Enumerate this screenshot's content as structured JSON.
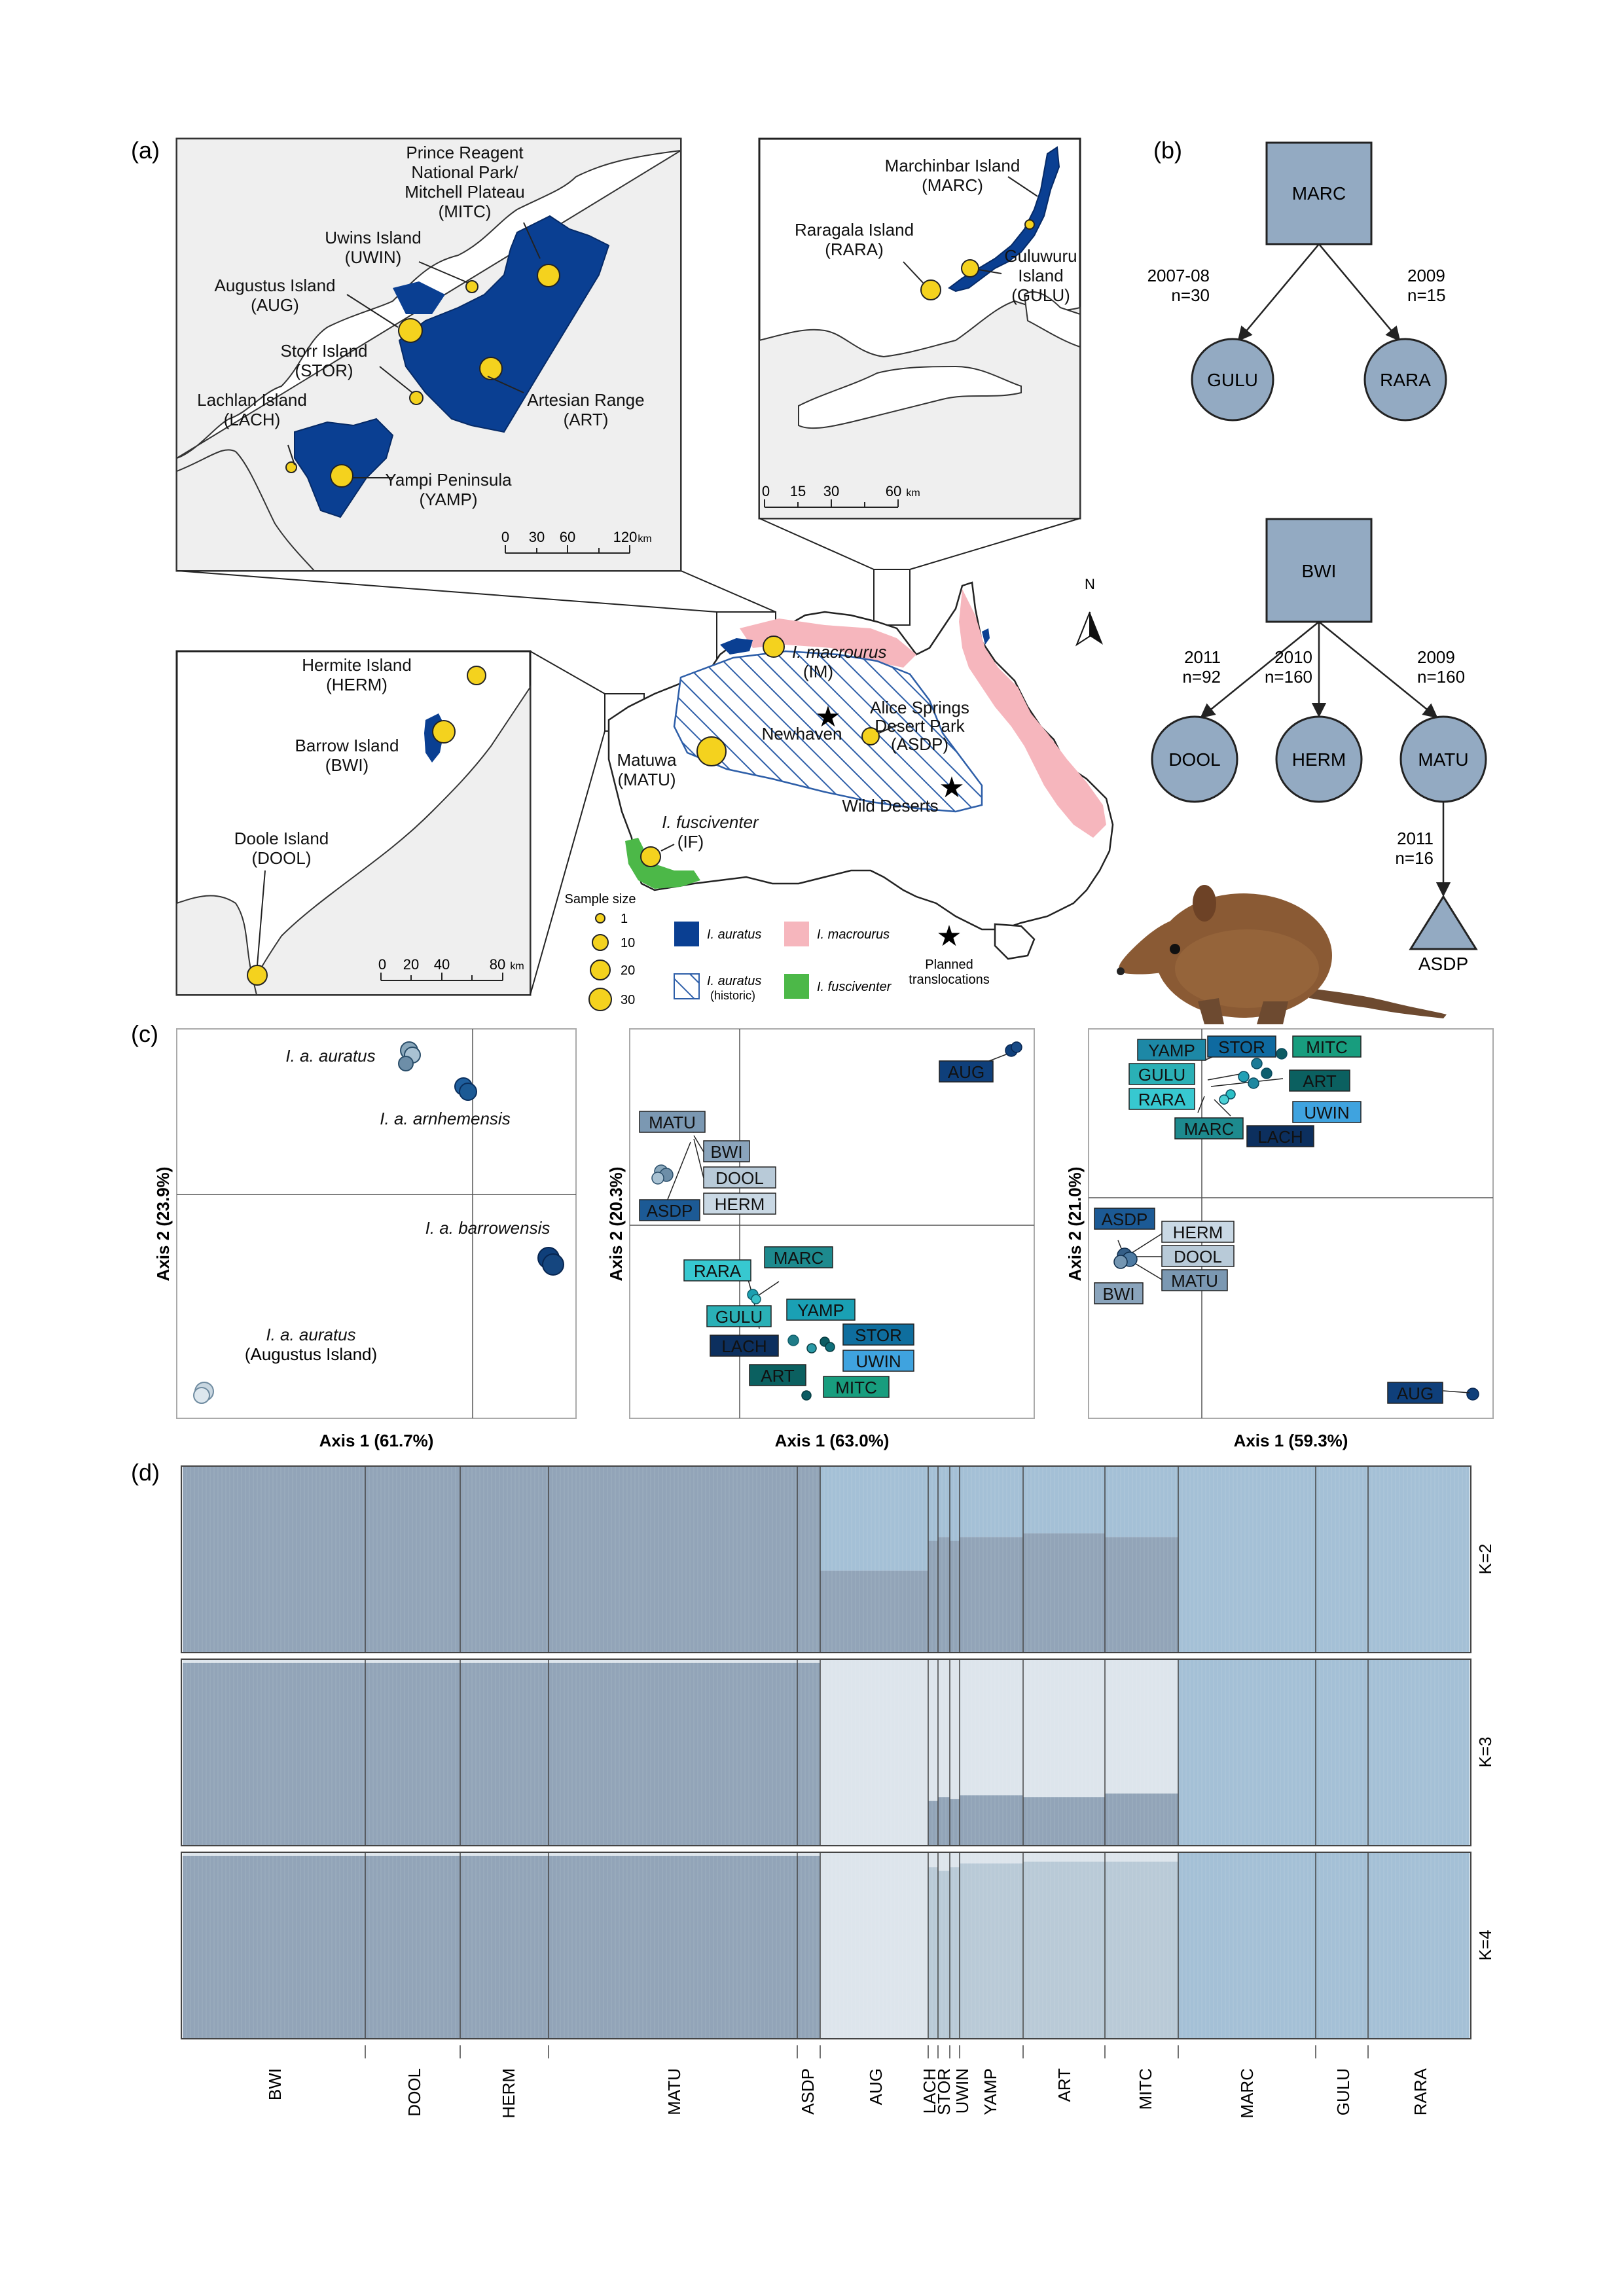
{
  "panel_labels": {
    "a": "(a)",
    "b": "(b)",
    "c": "(c)",
    "d": "(d)"
  },
  "colors": {
    "auratus": "#0a3f92",
    "macrourus": "#f6b6bd",
    "fusciventer": "#4cb848",
    "marker": "#f4d21e",
    "land": "#efefef",
    "tree_node": "#93aac2",
    "structure_c1": "#92a4b8",
    "structure_c2": "#a4c0d6",
    "structure_c3": "#dde5ec",
    "structure_c4": "#b9cad7"
  },
  "map": {
    "kimberley": {
      "labels": {
        "mitc": [
          "Prince Reagent",
          "National Park/",
          "Mitchell Plateau",
          "(MITC)"
        ],
        "uwin": [
          "Uwins Island",
          "(UWIN)"
        ],
        "aug": [
          "Augustus Island",
          "(AUG)"
        ],
        "stor": [
          "Storr Island",
          "(STOR)"
        ],
        "lach": [
          "Lachlan Island",
          "(LACH)"
        ],
        "art": [
          "Artesian Range",
          "(ART)"
        ],
        "yamp": [
          "Yampi Peninsula",
          "(YAMP)"
        ]
      },
      "scale": {
        "ticks": [
          "0",
          "30",
          "60",
          "120"
        ],
        "unit": "km"
      }
    },
    "arnhem": {
      "labels": {
        "marc": [
          "Marchinbar Island",
          "(MARC)"
        ],
        "rara": [
          "Raragala Island",
          "(RARA)"
        ],
        "gulu": [
          "Guluwuru",
          "Island",
          "(GULU)"
        ]
      },
      "scale": {
        "ticks": [
          "0",
          "15",
          "30",
          "60"
        ],
        "unit": "km"
      }
    },
    "pilbara": {
      "labels": {
        "herm": [
          "Hermite Island",
          "(HERM)"
        ],
        "bwi": [
          "Barrow Island",
          "(BWI)"
        ],
        "dool": [
          "Doole Island",
          "(DOOL)"
        ]
      },
      "scale": {
        "ticks": [
          "0",
          "20",
          "40",
          "80"
        ],
        "unit": "km"
      }
    },
    "australia": {
      "macrourus": [
        "I. macrourus",
        "(IM)"
      ],
      "newhaven": "Newhaven",
      "asdp": [
        "Alice Springs",
        "Desert Park",
        "(ASDP)"
      ],
      "matu": [
        "Matuwa",
        "(MATU)"
      ],
      "wild": "Wild Deserts",
      "fusciventer": [
        "I. fusciventer",
        "(IF)"
      ],
      "north": "N"
    },
    "legend": {
      "sample_size_title": "Sample size",
      "sizes": [
        "1",
        "10",
        "20",
        "30"
      ],
      "auratus": "I. auratus",
      "macrourus": "I. macrourus",
      "historic": [
        "I. auratus",
        "(historic)"
      ],
      "fusciventer": "I. fusciventer",
      "planned": [
        "Planned",
        "translocations"
      ]
    }
  },
  "trees": {
    "t1": {
      "root": "MARC",
      "children": [
        {
          "name": "GULU",
          "years": "2007-08",
          "n": "n=30"
        },
        {
          "name": "RARA",
          "years": "2009",
          "n": "n=15"
        }
      ]
    },
    "t2": {
      "root": "BWI",
      "children": [
        {
          "name": "DOOL",
          "years": "2011",
          "n": "n=92"
        },
        {
          "name": "HERM",
          "years": "2010",
          "n": "n=160"
        },
        {
          "name": "MATU",
          "years": "2009",
          "n": "n=160"
        }
      ],
      "leaf": {
        "name": "ASDP",
        "years": "2011",
        "n": "n=16"
      }
    }
  },
  "pca": [
    {
      "xlabel": "Axis 1 (61.7%)",
      "ylabel": "Axis 2 (23.9%)",
      "annotations": {
        "aur": "I. a. auratus",
        "arn": "I. a. arnhemensis",
        "bar": "I. a. barrowensis",
        "aug": [
          "I. a. auratus",
          "(Augustus Island)"
        ]
      }
    },
    {
      "xlabel": "Axis 1 (63.0%)",
      "ylabel": "Axis 2 (20.3%)",
      "labels": [
        "AUG",
        "MATU",
        "BWI",
        "DOOL",
        "ASDP",
        "HERM",
        "RARA",
        "MARC",
        "GULU",
        "YAMP",
        "STOR",
        "LACH",
        "UWIN",
        "ART",
        "MITC"
      ]
    },
    {
      "xlabel": "Axis 1 (59.3%)",
      "ylabel": "Axis 2 (21.0%)",
      "labels": [
        "YAMP",
        "STOR",
        "MITC",
        "ART",
        "GULU",
        "RARA",
        "UWIN",
        "MARC",
        "LACH",
        "ASDP",
        "HERM",
        "DOOL",
        "BWI",
        "MATU",
        "AUG"
      ]
    }
  ],
  "structure": {
    "k_labels": [
      "K=2",
      "K=3",
      "K=4"
    ],
    "populations": [
      "BWI",
      "DOOL",
      "HERM",
      "MATU",
      "ASDP",
      "AUG",
      "LACH",
      "STOR",
      "UWIN",
      "YAMP",
      "ART",
      "MITC",
      "MARC",
      "GULU",
      "RARA"
    ],
    "k2": [
      {
        "pop": "BWI",
        "c1": 1.0
      },
      {
        "pop": "DOOL",
        "c1": 1.0
      },
      {
        "pop": "HERM",
        "c1": 1.0
      },
      {
        "pop": "MATU",
        "c1": 1.0
      },
      {
        "pop": "ASDP",
        "c1": 1.0
      },
      {
        "pop": "AUG",
        "c1": 0.44
      },
      {
        "pop": "LACH",
        "c1": 0.6
      },
      {
        "pop": "STOR",
        "c1": 0.62
      },
      {
        "pop": "UWIN",
        "c1": 0.6
      },
      {
        "pop": "YAMP",
        "c1": 0.62
      },
      {
        "pop": "ART",
        "c1": 0.64
      },
      {
        "pop": "MITC",
        "c1": 0.62
      },
      {
        "pop": "MARC",
        "c1": 0.0
      },
      {
        "pop": "GULU",
        "c1": 0.0
      },
      {
        "pop": "RARA",
        "c1": 0.0
      }
    ],
    "k3": [
      {
        "pop": "BWI",
        "c1": 0.98,
        "c3": 0.02
      },
      {
        "pop": "DOOL",
        "c1": 0.98,
        "c3": 0.02
      },
      {
        "pop": "HERM",
        "c1": 0.98,
        "c3": 0.02
      },
      {
        "pop": "MATU",
        "c1": 0.98,
        "c3": 0.02
      },
      {
        "pop": "ASDP",
        "c1": 0.98,
        "c3": 0.02
      },
      {
        "pop": "AUG",
        "c1": 0.0,
        "c3": 1.0
      },
      {
        "pop": "LACH",
        "c1": 0.24,
        "c3": 0.76
      },
      {
        "pop": "STOR",
        "c1": 0.26,
        "c3": 0.74
      },
      {
        "pop": "UWIN",
        "c1": 0.25,
        "c3": 0.75
      },
      {
        "pop": "YAMP",
        "c1": 0.27,
        "c3": 0.73
      },
      {
        "pop": "ART",
        "c1": 0.26,
        "c3": 0.74
      },
      {
        "pop": "MITC",
        "c1": 0.28,
        "c3": 0.72
      },
      {
        "pop": "MARC",
        "c1": 0.0,
        "c3": 0.0
      },
      {
        "pop": "GULU",
        "c1": 0.0,
        "c3": 0.0
      },
      {
        "pop": "RARA",
        "c1": 0.0,
        "c3": 0.0
      }
    ],
    "k4": [
      {
        "pop": "BWI",
        "c1": 0.98,
        "c3": 0.02
      },
      {
        "pop": "DOOL",
        "c1": 0.98,
        "c3": 0.02
      },
      {
        "pop": "HERM",
        "c1": 0.98,
        "c3": 0.02
      },
      {
        "pop": "MATU",
        "c1": 0.98,
        "c3": 0.02
      },
      {
        "pop": "ASDP",
        "c1": 0.98,
        "c3": 0.02
      },
      {
        "pop": "AUG",
        "c3": 1.0
      },
      {
        "pop": "LACH",
        "c3": 0.08,
        "c4": 0.92
      },
      {
        "pop": "STOR",
        "c3": 0.1,
        "c4": 0.9
      },
      {
        "pop": "UWIN",
        "c3": 0.08,
        "c4": 0.92
      },
      {
        "pop": "YAMP",
        "c3": 0.06,
        "c4": 0.94
      },
      {
        "pop": "ART",
        "c3": 0.05,
        "c4": 0.95
      },
      {
        "pop": "MITC",
        "c3": 0.05,
        "c4": 0.95
      },
      {
        "pop": "MARC",
        "c2": 1.0
      },
      {
        "pop": "GULU",
        "c2": 1.0
      },
      {
        "pop": "RARA",
        "c2": 1.0
      }
    ]
  }
}
